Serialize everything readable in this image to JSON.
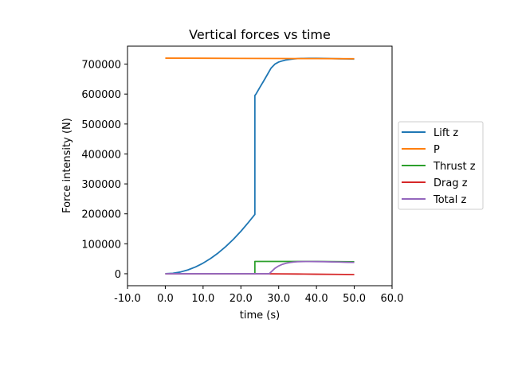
{
  "chart_data": {
    "type": "line",
    "title": "Vertical forces vs time",
    "xlabel": "time (s)",
    "ylabel": "Force intensity (N)",
    "xlim": [
      -10,
      60
    ],
    "ylim": [
      -40000,
      760000
    ],
    "xticks": [
      -10,
      0,
      10,
      20,
      30,
      40,
      50,
      60
    ],
    "xtick_labels": [
      "-10.0",
      "0.0",
      "10.0",
      "20.0",
      "30.0",
      "40.0",
      "50.0",
      "60.0"
    ],
    "yticks": [
      0,
      100000,
      200000,
      300000,
      400000,
      500000,
      600000,
      700000
    ],
    "ytick_labels": [
      "0",
      "100000",
      "200000",
      "300000",
      "400000",
      "500000",
      "600000",
      "700000"
    ],
    "grid": false,
    "legend_position": "outside-right",
    "series": [
      {
        "name": "Lift z",
        "color": "#1f77b4",
        "x": [
          0,
          2,
          4,
          6,
          8,
          10,
          12,
          14,
          16,
          18,
          20,
          22,
          23.7,
          23.7,
          24,
          25,
          26,
          27,
          28,
          29,
          30,
          31,
          32,
          33,
          34,
          35,
          36,
          38,
          40,
          42,
          44,
          46,
          48,
          50
        ],
        "y": [
          0,
          1400,
          5700,
          12800,
          22700,
          35400,
          51000,
          69400,
          90700,
          114800,
          141700,
          171500,
          198000,
          595000,
          600000,
          622000,
          643000,
          665000,
          687000,
          700000,
          707000,
          711000,
          714000,
          716000,
          717500,
          718500,
          719000,
          719500,
          719500,
          719000,
          718500,
          718000,
          717500,
          717000
        ]
      },
      {
        "name": "P",
        "color": "#ff7f0e",
        "x": [
          0,
          10,
          20,
          30,
          40,
          50
        ],
        "y": [
          720000,
          719600,
          719200,
          718800,
          718400,
          718000
        ]
      },
      {
        "name": "Thrust z",
        "color": "#2ca02c",
        "x": [
          0,
          23.7,
          23.7,
          30,
          40,
          50
        ],
        "y": [
          0,
          0,
          41000,
          41000,
          41000,
          40000
        ]
      },
      {
        "name": "Drag z",
        "color": "#d62728",
        "x": [
          0,
          25,
          30,
          35,
          40,
          45,
          50
        ],
        "y": [
          0,
          0,
          -500,
          -1000,
          -1600,
          -2200,
          -2800
        ]
      },
      {
        "name": "Total z",
        "color": "#9467bd",
        "x": [
          0,
          27.5,
          28,
          29,
          30,
          31,
          32,
          33,
          34,
          35,
          36,
          37,
          38,
          40,
          42,
          44,
          46,
          48,
          50
        ],
        "y": [
          0,
          0,
          6000,
          18000,
          26000,
          31500,
          35000,
          37500,
          39000,
          40000,
          40500,
          40700,
          40800,
          40600,
          40200,
          39600,
          39000,
          38300,
          37700
        ]
      }
    ]
  }
}
